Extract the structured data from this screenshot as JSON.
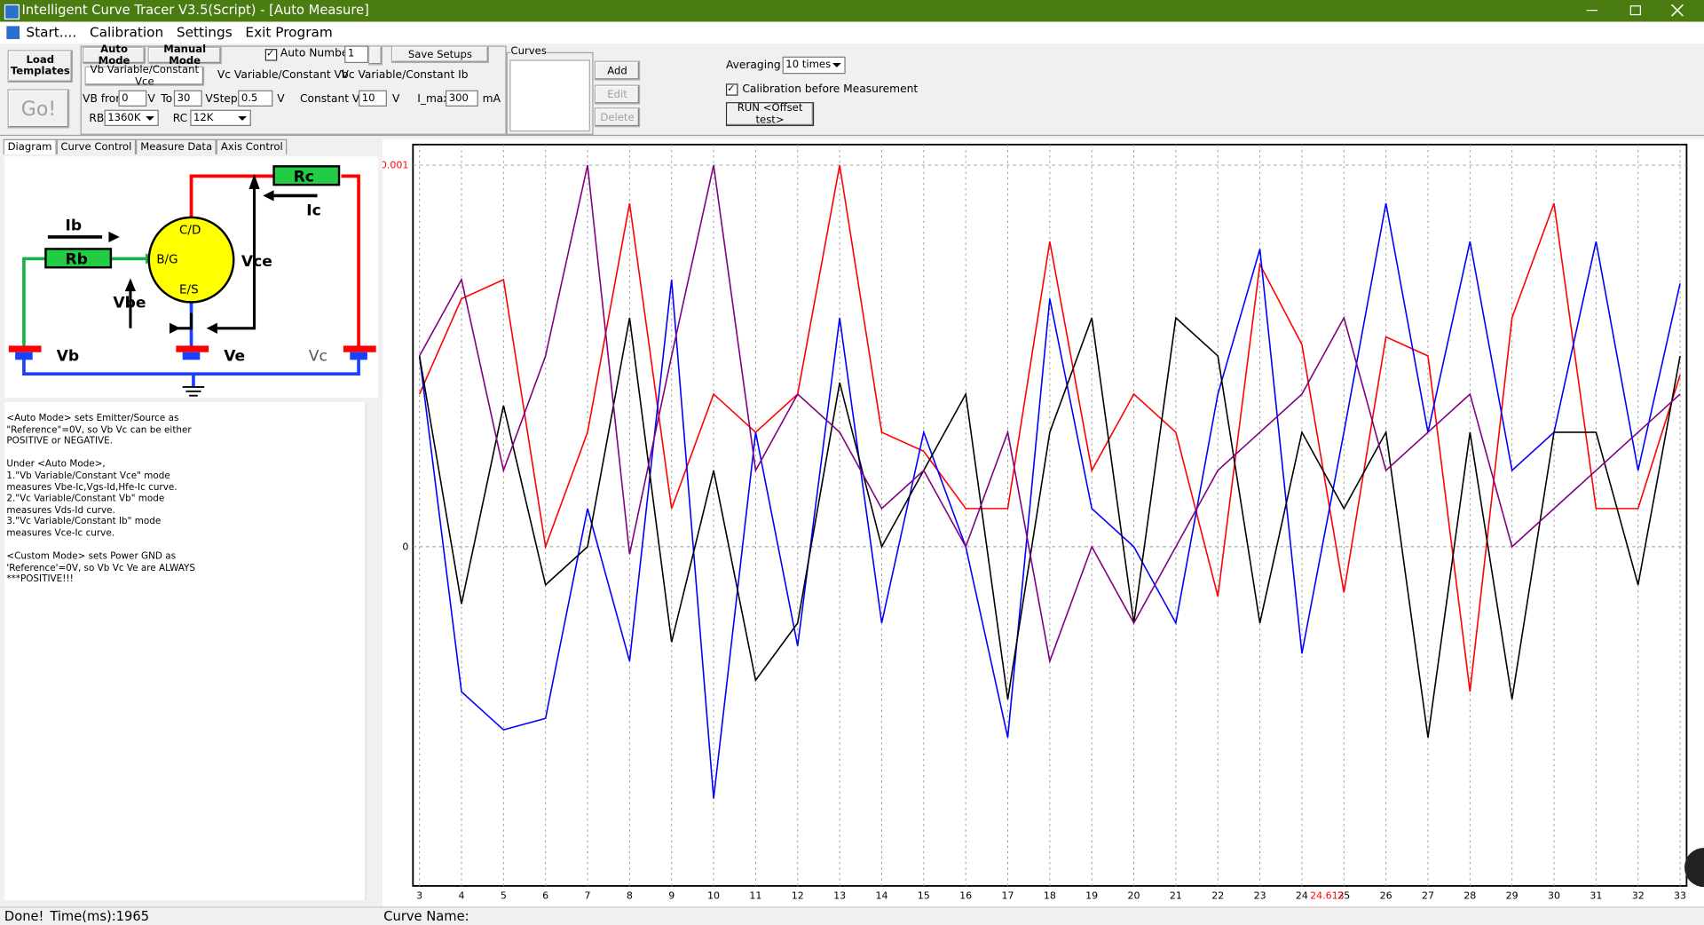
{
  "window": {
    "title": "Intelligent Curve Tracer V3.5(Script) - [Auto Measure]"
  },
  "menu": [
    "Start....",
    "Calibration",
    "Settings",
    "Exit Program"
  ],
  "toolbar": {
    "load_templates": "Load Templates",
    "go": "Go!",
    "mode_tabs": [
      "Auto Mode",
      "Manual Mode"
    ],
    "auto_number_label": "Auto Number",
    "auto_number_value": "1",
    "save_setups": "Save Setups",
    "sub_tabs": [
      "Vb Variable/Constant Vce",
      "Vc Variable/Constant Vb",
      "Vc Variable/Constant Ib"
    ],
    "vb_from_label": "VB from",
    "vb_from": "0",
    "vb_from_unit": "V",
    "to_label": "To",
    "to_value": "30",
    "vsteps_label": "VSteps",
    "vsteps": "0.5",
    "vsteps_unit": "V",
    "constant_vce_label": "Constant Vce",
    "constant_vce": "10",
    "constant_vce_unit": "V",
    "imax_label": "I_max",
    "imax": "300",
    "imax_unit": "mA",
    "rb_label": "RB",
    "rb": "1360K",
    "rc_label": "RC",
    "rc": "12K"
  },
  "curves": {
    "label": "Curves",
    "add": "Add",
    "edit": "Edit",
    "delete": "Delete"
  },
  "run": {
    "averaging_label": "Averaging",
    "averaging": "10 times",
    "calibration": "Calibration before Measurement",
    "run_button": "RUN <Offset test>"
  },
  "left_tabs": [
    "Diagram",
    "Curve Control",
    "Measure Data",
    "Axis Control"
  ],
  "diagram": {
    "ib": "Ib",
    "rb": "Rb",
    "bg": "B/G",
    "cd": "C/D",
    "es": "E/S",
    "rc": "Rc",
    "ic": "Ic",
    "vce": "Vce",
    "vbe": "Vbe",
    "vb": "Vb",
    "ve": "Ve",
    "vc": "Vc"
  },
  "help_text": [
    "<Auto Mode> sets Emitter/Source as",
    "\"Reference\"=0V, so Vb Vc can be either",
    "POSITIVE or NEGATIVE.",
    "",
    "Under <Auto Mode>,",
    "1.\"Vb Variable/Constant Vce\" mode",
    "measures Vbe-Ic,Vgs-Id,Hfe-Ic curve.",
    "2.\"Vc Variable/Constant Vb\" mode",
    "measures Vds-Id curve.",
    "3.\"Vc Variable/Constant Ib\" mode",
    "measures Vce-Ic curve.",
    "",
    "<Custom Mode> sets Power GND as",
    "'Reference'=0V, so Vb Vc Ve are ALWAYS",
    "***POSITIVE!!!"
  ],
  "status": {
    "done": "Done!",
    "time": "Time(ms):1965",
    "curve_name": "Curve Name:"
  },
  "chart_data": {
    "type": "line",
    "x": [
      3,
      4,
      5,
      6,
      7,
      8,
      9,
      10,
      11,
      12,
      13,
      14,
      15,
      16,
      17,
      18,
      19,
      20,
      21,
      22,
      23,
      24,
      25,
      26,
      27,
      28,
      29,
      30,
      31,
      32,
      33
    ],
    "series": [
      {
        "name": "red",
        "color": "#ff0000",
        "values": [
          0.0004,
          0.00065,
          0.0007,
          0.0,
          0.0003,
          0.0009,
          0.0001,
          0.0004,
          0.0003,
          0.0004,
          0.001,
          0.0003,
          0.00025,
          0.0001,
          0.0001,
          0.0008,
          0.0002,
          0.0004,
          0.0003,
          -0.00013,
          0.00074,
          0.00053,
          -0.00012,
          0.00055,
          0.0005,
          -0.00038,
          0.0006,
          0.0009,
          0.0001,
          0.0001,
          0.00045
        ]
      },
      {
        "name": "blue",
        "color": "#0000ff",
        "values": [
          0.0005,
          -0.00038,
          -0.00048,
          -0.00045,
          0.0001,
          -0.0003,
          0.0007,
          -0.00066,
          0.0003,
          -0.00026,
          0.0006,
          -0.0002,
          0.0003,
          0.0,
          -0.0005,
          0.00065,
          0.0001,
          0.0,
          -0.0002,
          0.0004,
          0.00078,
          -0.00028,
          0.0003,
          0.0009,
          0.0003,
          0.0008,
          0.0002,
          0.0003,
          0.0008,
          0.0002,
          0.00069
        ]
      },
      {
        "name": "black",
        "color": "#000000",
        "values": [
          0.0005,
          -0.00015,
          0.00037,
          -0.0001,
          0.0,
          0.0006,
          -0.00025,
          0.0002,
          -0.00035,
          -0.0002,
          0.00043,
          0.0,
          0.0002,
          0.0004,
          -0.0004,
          0.0003,
          0.0006,
          -0.0002,
          0.0006,
          0.0005,
          -0.0002,
          0.0003,
          0.0001,
          0.0003,
          -0.0005,
          0.0003,
          -0.0004,
          0.0003,
          0.0003,
          -0.0001,
          0.0005
        ]
      },
      {
        "name": "purple",
        "color": "#800080",
        "values": [
          0.0005,
          0.0007,
          0.0002,
          0.0005,
          0.001,
          -2e-05,
          0.0005,
          0.001,
          0.0002,
          0.0004,
          0.0003,
          0.0001,
          0.0002,
          0.0,
          0.0003,
          -0.0003,
          0.0,
          -0.0002,
          0.0,
          0.0002,
          0.0003,
          0.0004,
          0.0006,
          0.0002,
          0.0003,
          0.0004,
          0.0,
          0.0001,
          0.0002,
          0.0003,
          0.0004
        ]
      }
    ],
    "xlim": [
      2.845,
      33.155
    ],
    "ylim": [
      -0.000889,
      0.001054
    ],
    "xticks": [
      3,
      4,
      5,
      6,
      7,
      8,
      9,
      10,
      11,
      12,
      13,
      14,
      15,
      16,
      17,
      18,
      19,
      20,
      21,
      22,
      23,
      24,
      25,
      26,
      27,
      28,
      29,
      30,
      31,
      32,
      33
    ],
    "yticks": [
      0,
      0.001
    ],
    "grid": true,
    "cursor_label": "24.613"
  }
}
